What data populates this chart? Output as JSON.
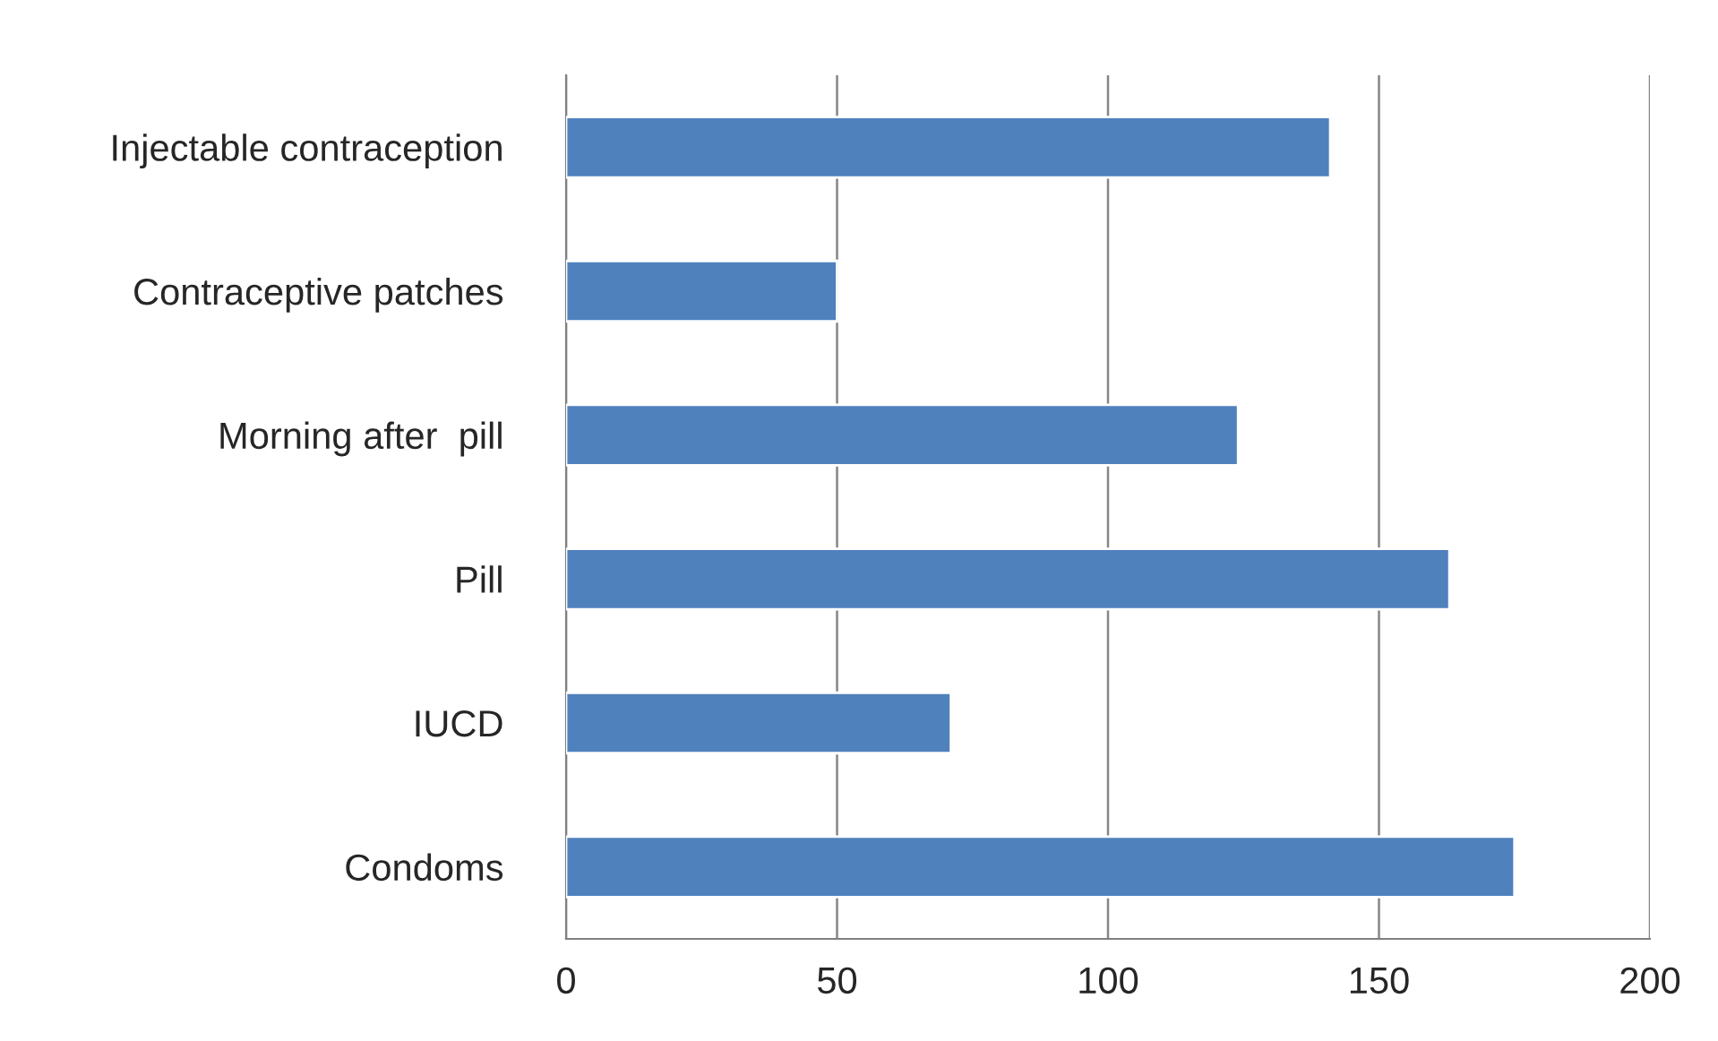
{
  "chart_data": {
    "type": "bar",
    "orientation": "horizontal",
    "categories": [
      "Injectable contraception",
      "Contraceptive patches",
      "Morning after  pill",
      "Pill",
      "IUCD",
      "Condoms"
    ],
    "values": [
      141,
      50,
      124,
      163,
      71,
      175
    ],
    "color": "#4f81bd",
    "xlim": [
      0,
      200
    ],
    "xticks": [
      0,
      50,
      100,
      150,
      200
    ],
    "grid": "x",
    "legend": false
  }
}
